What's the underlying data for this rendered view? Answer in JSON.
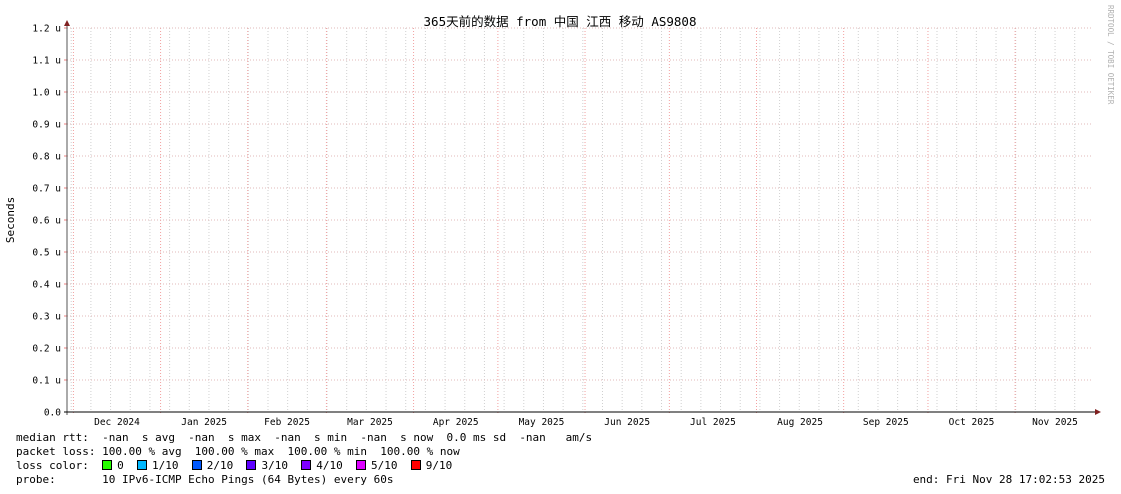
{
  "chart_data": {
    "type": "line",
    "title": "365天前的数据 from 中国 江西 移动 AS9808",
    "ylabel": "Seconds",
    "ylim": [
      0,
      1.2
    ],
    "y_unit": "u",
    "yticks": [
      "0.0",
      "0.1 u",
      "0.2 u",
      "0.3 u",
      "0.4 u",
      "0.5 u",
      "0.6 u",
      "0.7 u",
      "0.8 u",
      "0.9 u",
      "1.0 u",
      "1.1 u",
      "1.2 u"
    ],
    "xlim": [
      "2024-11-28T17:02:53",
      "2025-11-28T17:02:53"
    ],
    "xticks": [
      "Dec 2024",
      "Jan 2025",
      "Feb 2025",
      "Mar 2025",
      "Apr 2025",
      "May 2025",
      "Jun 2025",
      "Jul 2025",
      "Aug 2025",
      "Sep 2025",
      "Oct 2025",
      "Nov 2025"
    ],
    "grid": true,
    "series": [],
    "watermark": "RRDTOOL / TOBI OETIKER"
  },
  "legend": {
    "median_rtt": "median rtt:  -nan  s avg  -nan  s max  -nan  s min  -nan  s now  0.0 ms sd  -nan   am/s",
    "packet_loss": "packet loss: 100.00 % avg  100.00 % max  100.00 % min  100.00 % now",
    "loss_color_label": "loss color:  ",
    "loss_colors": [
      {
        "label": "0",
        "color": "#26ff00"
      },
      {
        "label": "1/10",
        "color": "#00b8ff"
      },
      {
        "label": "2/10",
        "color": "#0059ff"
      },
      {
        "label": "3/10",
        "color": "#5e00ff"
      },
      {
        "label": "4/10",
        "color": "#7e00ff"
      },
      {
        "label": "5/10",
        "color": "#dd00ff"
      },
      {
        "label": "9/10",
        "color": "#ff0000"
      }
    ],
    "probe": "probe:       10 IPv6-ICMP Echo Pings (64 Bytes) every 60s",
    "end": "end: Fri Nov 28 17:02:53 2025"
  }
}
